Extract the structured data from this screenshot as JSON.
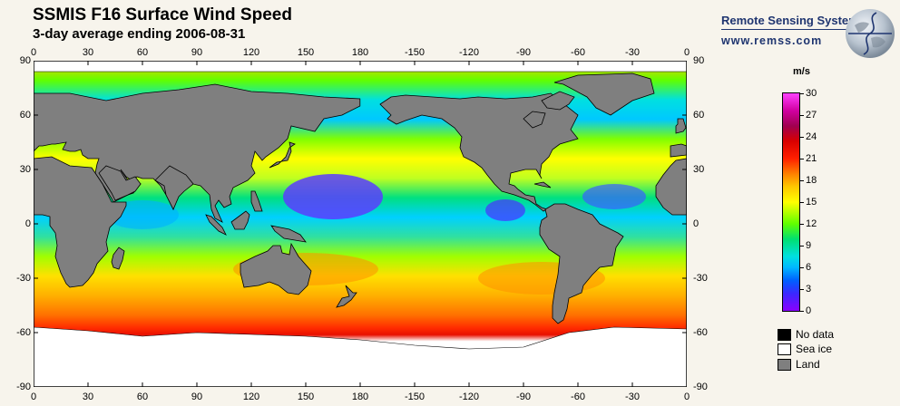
{
  "header": {
    "title": "SSMIS F16 Surface Wind Speed",
    "subtitle": "3-day average ending 2006-08-31"
  },
  "logo": {
    "name": "Remote Sensing Systems",
    "url": "www.remss.com"
  },
  "axes": {
    "longitude_labels": [
      "0",
      "30",
      "60",
      "90",
      "120",
      "150",
      "180",
      "-150",
      "-120",
      "-90",
      "-60",
      "-30",
      "0"
    ],
    "latitude_labels": [
      "90",
      "60",
      "30",
      "0",
      "-30",
      "-60",
      "-90"
    ]
  },
  "colorbar": {
    "unit": "m/s",
    "ticks": [
      "30",
      "27",
      "24",
      "21",
      "18",
      "15",
      "12",
      "9",
      "6",
      "3",
      "0"
    ],
    "min": 0,
    "max": 30
  },
  "legend": {
    "no_data": "No data",
    "sea_ice": "Sea ice",
    "land": "Land",
    "colors": {
      "no_data": "#000000",
      "sea_ice": "#ffffff",
      "land": "#7f7f7f"
    }
  }
}
